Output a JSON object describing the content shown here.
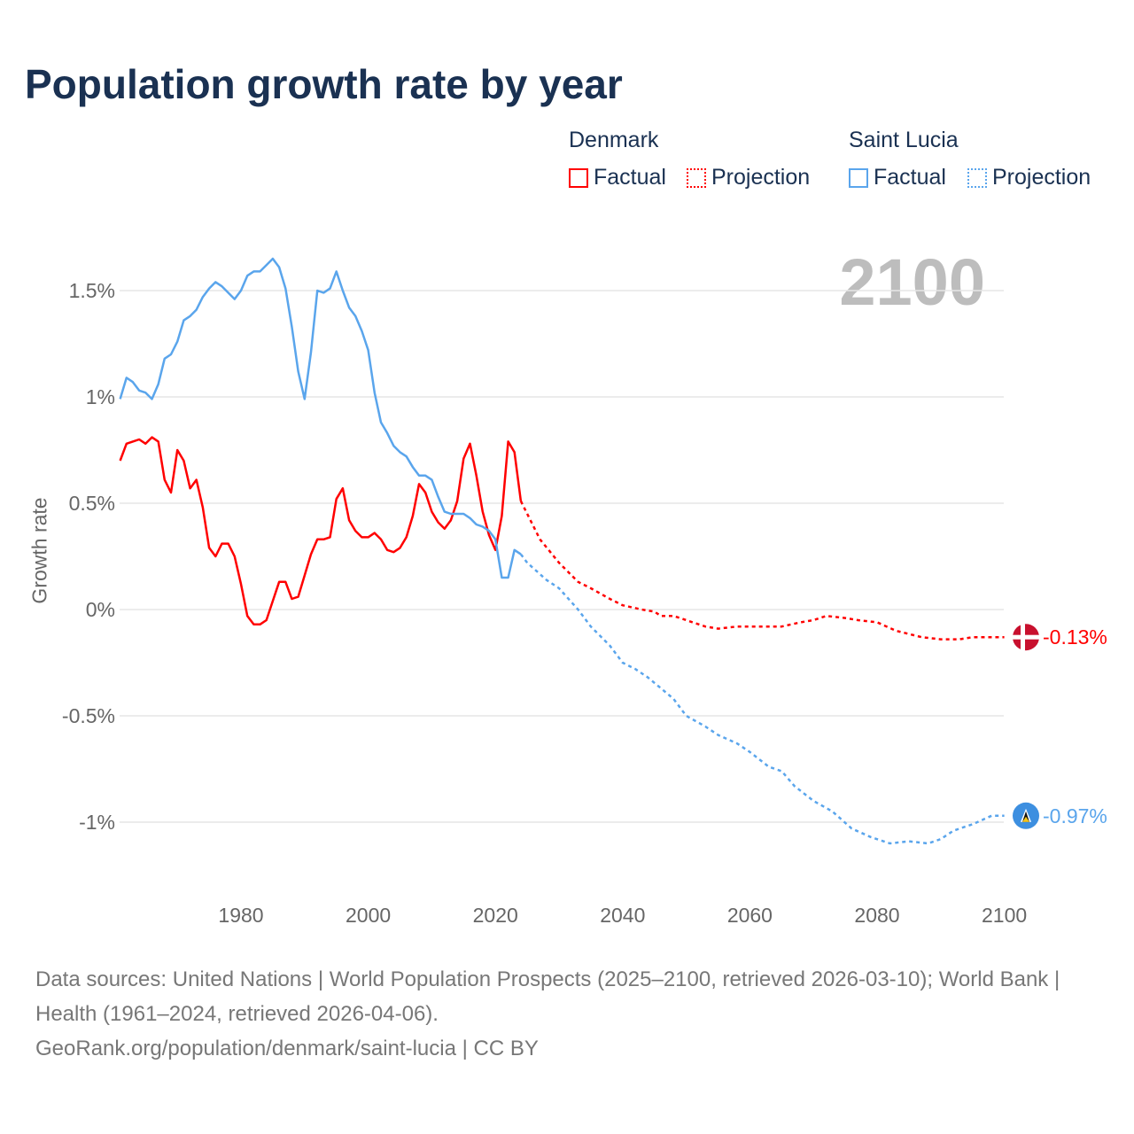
{
  "title": "Population growth rate by year",
  "year_label": "2100",
  "legend": {
    "denmark": {
      "name": "Denmark",
      "factual": "Factual",
      "projection": "Projection"
    },
    "saint_lucia": {
      "name": "Saint Lucia",
      "factual": "Factual",
      "projection": "Projection"
    }
  },
  "footer": {
    "sources": "Data sources: United Nations | World Population Prospects (2025–2100, retrieved 2026-03-10); World Bank | Health (1961–2024, retrieved 2026-04-06).",
    "credit": "GeoRank.org/population/denmark/saint-lucia | CC BY"
  },
  "chart_data": {
    "type": "line",
    "title": "Population growth rate by year",
    "xlabel": "",
    "ylabel": "Growth rate",
    "xlim": [
      1961,
      2100
    ],
    "ylim": [
      -1.3,
      1.8
    ],
    "xticks": [
      1980,
      2000,
      2020,
      2040,
      2060,
      2080,
      2100
    ],
    "yticks": [
      {
        "v": 1.5,
        "label": "1.5%"
      },
      {
        "v": 1,
        "label": "1%"
      },
      {
        "v": 0.5,
        "label": "0.5%"
      },
      {
        "v": 0,
        "label": "0%"
      },
      {
        "v": -0.5,
        "label": "-0.5%"
      },
      {
        "v": -1,
        "label": "-1%"
      }
    ],
    "grid": true,
    "legend_position": "top-right",
    "series": [
      {
        "name": "Denmark Factual",
        "color": "#ff0000",
        "dashed": false,
        "x": [
          1961,
          1962,
          1963,
          1964,
          1965,
          1966,
          1967,
          1968,
          1969,
          1970,
          1971,
          1972,
          1973,
          1974,
          1975,
          1976,
          1977,
          1978,
          1979,
          1980,
          1981,
          1982,
          1983,
          1984,
          1985,
          1986,
          1987,
          1988,
          1989,
          1990,
          1991,
          1992,
          1993,
          1994,
          1995,
          1996,
          1997,
          1998,
          1999,
          2000,
          2001,
          2002,
          2003,
          2004,
          2005,
          2006,
          2007,
          2008,
          2009,
          2010,
          2011,
          2012,
          2013,
          2014,
          2015,
          2016,
          2017,
          2018,
          2019,
          2020,
          2021,
          2022,
          2023,
          2024
        ],
        "y": [
          0.7,
          0.78,
          0.79,
          0.8,
          0.78,
          0.81,
          0.79,
          0.61,
          0.55,
          0.75,
          0.7,
          0.57,
          0.61,
          0.48,
          0.29,
          0.25,
          0.31,
          0.31,
          0.25,
          0.12,
          -0.03,
          -0.07,
          -0.07,
          -0.05,
          0.04,
          0.13,
          0.13,
          0.05,
          0.06,
          0.16,
          0.26,
          0.33,
          0.33,
          0.34,
          0.52,
          0.57,
          0.42,
          0.37,
          0.34,
          0.34,
          0.36,
          0.33,
          0.28,
          0.27,
          0.29,
          0.34,
          0.44,
          0.59,
          0.55,
          0.46,
          0.41,
          0.38,
          0.42,
          0.51,
          0.71,
          0.78,
          0.63,
          0.46,
          0.35,
          0.28,
          0.44,
          0.79,
          0.74,
          0.51
        ]
      },
      {
        "name": "Denmark Projection",
        "color": "#ff0000",
        "dashed": true,
        "x": [
          2024,
          2025,
          2027,
          2030,
          2033,
          2035,
          2038,
          2040,
          2043,
          2045,
          2046,
          2048,
          2050,
          2053,
          2055,
          2058,
          2060,
          2063,
          2065,
          2068,
          2070,
          2072,
          2075,
          2077,
          2080,
          2083,
          2087,
          2090,
          2093,
          2095,
          2098,
          2100
        ],
        "y": [
          0.51,
          0.45,
          0.33,
          0.22,
          0.13,
          0.1,
          0.05,
          0.02,
          0.0,
          -0.01,
          -0.03,
          -0.03,
          -0.05,
          -0.08,
          -0.09,
          -0.08,
          -0.08,
          -0.08,
          -0.08,
          -0.06,
          -0.05,
          -0.03,
          -0.04,
          -0.05,
          -0.06,
          -0.1,
          -0.13,
          -0.14,
          -0.14,
          -0.13,
          -0.13,
          -0.13
        ]
      },
      {
        "name": "Saint Lucia Factual",
        "color": "#5aa5ec",
        "dashed": false,
        "x": [
          1961,
          1962,
          1963,
          1964,
          1965,
          1966,
          1967,
          1968,
          1969,
          1970,
          1971,
          1972,
          1973,
          1974,
          1975,
          1976,
          1977,
          1978,
          1979,
          1980,
          1981,
          1982,
          1983,
          1984,
          1985,
          1986,
          1987,
          1988,
          1989,
          1990,
          1991,
          1992,
          1993,
          1994,
          1995,
          1996,
          1997,
          1998,
          1999,
          2000,
          2001,
          2002,
          2003,
          2004,
          2005,
          2006,
          2007,
          2008,
          2009,
          2010,
          2011,
          2012,
          2013,
          2014,
          2015,
          2016,
          2017,
          2018,
          2019,
          2020,
          2021,
          2022,
          2023,
          2024
        ],
        "y": [
          0.99,
          1.09,
          1.07,
          1.03,
          1.02,
          0.99,
          1.06,
          1.18,
          1.2,
          1.26,
          1.36,
          1.38,
          1.41,
          1.47,
          1.51,
          1.54,
          1.52,
          1.49,
          1.46,
          1.5,
          1.57,
          1.59,
          1.59,
          1.62,
          1.65,
          1.61,
          1.51,
          1.33,
          1.12,
          0.99,
          1.21,
          1.5,
          1.49,
          1.51,
          1.59,
          1.5,
          1.42,
          1.38,
          1.31,
          1.22,
          1.02,
          0.88,
          0.83,
          0.77,
          0.74,
          0.72,
          0.67,
          0.63,
          0.63,
          0.61,
          0.53,
          0.46,
          0.45,
          0.45,
          0.45,
          0.43,
          0.4,
          0.39,
          0.37,
          0.33,
          0.15,
          0.15,
          0.28,
          0.26
        ]
      },
      {
        "name": "Saint Lucia Projection",
        "color": "#5aa5ec",
        "dashed": true,
        "x": [
          2024,
          2025,
          2028,
          2030,
          2033,
          2035,
          2038,
          2040,
          2042,
          2044,
          2046,
          2048,
          2050,
          2053,
          2055,
          2058,
          2060,
          2063,
          2065,
          2067,
          2070,
          2073,
          2076,
          2079,
          2082,
          2085,
          2088,
          2090,
          2092,
          2095,
          2098,
          2100
        ],
        "y": [
          0.26,
          0.22,
          0.14,
          0.1,
          0.0,
          -0.08,
          -0.17,
          -0.25,
          -0.28,
          -0.32,
          -0.37,
          -0.42,
          -0.5,
          -0.55,
          -0.59,
          -0.63,
          -0.67,
          -0.74,
          -0.76,
          -0.83,
          -0.9,
          -0.95,
          -1.03,
          -1.07,
          -1.1,
          -1.09,
          -1.1,
          -1.08,
          -1.04,
          -1.01,
          -0.97,
          -0.97
        ]
      }
    ],
    "end_labels": [
      {
        "country": "Denmark",
        "value": -0.13,
        "label": "-0.13%",
        "color": "#ff0000"
      },
      {
        "country": "Saint Lucia",
        "value": -0.97,
        "label": "-0.97%",
        "color": "#5aa5ec"
      }
    ]
  }
}
